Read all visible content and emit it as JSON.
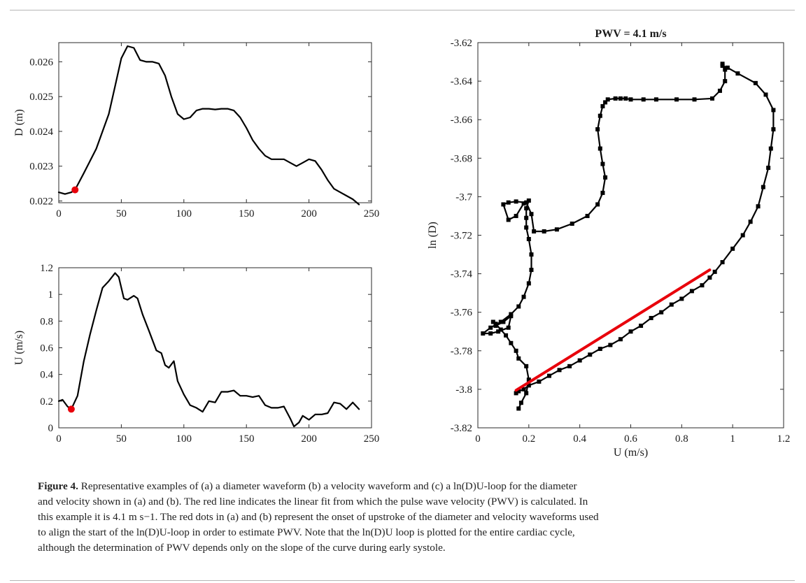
{
  "chart_data": [
    {
      "id": "a",
      "type": "line",
      "title": "",
      "xlabel": "",
      "ylabel": "D (m)",
      "xlim": [
        0,
        250
      ],
      "ylim": [
        0.02195,
        0.02655
      ],
      "xticks": [
        0,
        50,
        100,
        150,
        200,
        250
      ],
      "xtick_labels": [
        "0",
        "50",
        "100",
        "150",
        "200",
        "250"
      ],
      "yticks": [
        0.022,
        0.023,
        0.024,
        0.025,
        0.026
      ],
      "ytick_labels": [
        "0.022",
        "0.023",
        "0.024",
        "0.025",
        "0.026"
      ],
      "grid": false,
      "series": [
        {
          "color": "#000000",
          "x": [
            0,
            5,
            10,
            13,
            20,
            30,
            40,
            45,
            50,
            55,
            60,
            65,
            70,
            75,
            80,
            85,
            90,
            95,
            100,
            105,
            110,
            115,
            120,
            125,
            130,
            135,
            140,
            145,
            150,
            155,
            160,
            165,
            170,
            175,
            180,
            185,
            190,
            195,
            200,
            205,
            210,
            215,
            220,
            225,
            230,
            235,
            240
          ],
          "y": [
            0.02225,
            0.0222,
            0.02225,
            0.02232,
            0.0228,
            0.0235,
            0.0245,
            0.0253,
            0.0261,
            0.02645,
            0.0264,
            0.02605,
            0.026,
            0.026,
            0.02595,
            0.0256,
            0.025,
            0.0245,
            0.02435,
            0.0244,
            0.0246,
            0.02465,
            0.02465,
            0.02463,
            0.02465,
            0.02465,
            0.0246,
            0.0244,
            0.0241,
            0.02375,
            0.0235,
            0.0233,
            0.0232,
            0.0232,
            0.0232,
            0.0231,
            0.023,
            0.0231,
            0.0232,
            0.02315,
            0.0229,
            0.0226,
            0.02235,
            0.02225,
            0.02215,
            0.02205,
            0.0219
          ]
        }
      ],
      "markers": [
        {
          "x": 13,
          "y": 0.02232,
          "color": "#e8000b"
        }
      ]
    },
    {
      "id": "b",
      "type": "line",
      "title": "",
      "xlabel": "",
      "ylabel": "U (m/s)",
      "xlim": [
        0,
        250
      ],
      "ylim": [
        0,
        1.2
      ],
      "xticks": [
        0,
        50,
        100,
        150,
        200,
        250
      ],
      "xtick_labels": [
        "0",
        "50",
        "100",
        "150",
        "200",
        "250"
      ],
      "yticks": [
        0,
        0.2,
        0.4,
        0.6,
        0.8,
        1,
        1.2
      ],
      "ytick_labels": [
        "0",
        "0.2",
        "0.4",
        "0.6",
        "0.8",
        "1",
        "1.2"
      ],
      "grid": false,
      "series": [
        {
          "color": "#000000",
          "x": [
            0,
            3,
            7,
            10,
            15,
            20,
            25,
            30,
            35,
            40,
            45,
            48,
            52,
            55,
            60,
            63,
            67,
            72,
            78,
            82,
            85,
            88,
            92,
            95,
            100,
            105,
            110,
            115,
            120,
            125,
            130,
            135,
            140,
            145,
            150,
            155,
            160,
            165,
            170,
            175,
            180,
            185,
            188,
            192,
            195,
            200,
            205,
            210,
            215,
            220,
            225,
            230,
            235,
            240
          ],
          "y": [
            0.2,
            0.21,
            0.16,
            0.14,
            0.24,
            0.5,
            0.7,
            0.88,
            1.05,
            1.1,
            1.16,
            1.13,
            0.97,
            0.96,
            0.99,
            0.97,
            0.85,
            0.73,
            0.58,
            0.56,
            0.47,
            0.45,
            0.5,
            0.35,
            0.25,
            0.17,
            0.15,
            0.12,
            0.2,
            0.19,
            0.27,
            0.27,
            0.28,
            0.24,
            0.24,
            0.23,
            0.24,
            0.17,
            0.15,
            0.15,
            0.16,
            0.07,
            0.01,
            0.04,
            0.09,
            0.06,
            0.1,
            0.1,
            0.11,
            0.19,
            0.18,
            0.14,
            0.19,
            0.14
          ]
        }
      ],
      "markers": [
        {
          "x": 10,
          "y": 0.14,
          "color": "#e8000b"
        }
      ]
    },
    {
      "id": "c",
      "type": "line",
      "title": "PWV = 4.1 m/s",
      "xlabel": "U (m/s)",
      "ylabel": "ln (D)",
      "xlim": [
        0,
        1.2
      ],
      "ylim": [
        -3.82,
        -3.62
      ],
      "xticks": [
        0,
        0.2,
        0.4,
        0.6,
        0.8,
        1,
        1.2
      ],
      "xtick_labels": [
        "0",
        "0.2",
        "0.4",
        "0.6",
        "0.8",
        "1",
        "1.2"
      ],
      "yticks": [
        -3.82,
        -3.8,
        -3.78,
        -3.76,
        -3.74,
        -3.72,
        -3.7,
        -3.68,
        -3.66,
        -3.64,
        -3.62
      ],
      "ytick_labels": [
        "-3.82",
        "-3.8",
        "-3.78",
        "-3.76",
        "-3.74",
        "-3.72",
        "-3.7",
        "-3.68",
        "-3.66",
        "-3.64",
        "-3.62"
      ],
      "grid": false,
      "series": [
        {
          "color": "#000000",
          "marker": "square",
          "x": [
            0.16,
            0.17,
            0.19,
            0.2,
            0.19,
            0.16,
            0.15,
            0.13,
            0.11,
            0.09,
            0.07,
            0.06,
            0.07,
            0.1,
            0.13,
            0.12,
            0.08,
            0.05,
            0.02,
            0.05,
            0.09,
            0.13,
            0.16,
            0.18,
            0.2,
            0.21,
            0.21,
            0.2,
            0.19,
            0.19,
            0.19,
            0.2,
            0.18,
            0.15,
            0.12,
            0.1,
            0.12,
            0.15,
            0.19,
            0.21,
            0.22,
            0.26,
            0.31,
            0.37,
            0.43,
            0.47,
            0.49,
            0.5,
            0.49,
            0.48,
            0.47,
            0.48,
            0.49,
            0.5,
            0.51,
            0.54,
            0.56,
            0.58,
            0.6,
            0.65,
            0.7,
            0.78,
            0.85,
            0.92,
            0.95,
            0.97,
            0.97,
            0.96,
            0.96,
            0.98,
            1.02,
            1.09,
            1.13,
            1.16,
            1.16,
            1.15,
            1.14,
            1.12,
            1.1,
            1.07,
            1.04,
            1.0,
            0.96,
            0.93,
            0.91,
            0.88,
            0.84,
            0.8,
            0.76,
            0.72,
            0.68,
            0.64,
            0.6,
            0.56,
            0.52,
            0.48,
            0.44,
            0.4,
            0.36,
            0.32,
            0.28,
            0.24,
            0.2,
            0.18,
            0.16,
            0.15
          ],
          "y": [
            -3.81,
            -3.807,
            -3.802,
            -3.795,
            -3.788,
            -3.784,
            -3.78,
            -3.776,
            -3.772,
            -3.769,
            -3.766,
            -3.765,
            -3.767,
            -3.765,
            -3.762,
            -3.768,
            -3.77,
            -3.771,
            -3.771,
            -3.768,
            -3.765,
            -3.761,
            -3.757,
            -3.752,
            -3.745,
            -3.738,
            -3.73,
            -3.722,
            -3.716,
            -3.711,
            -3.706,
            -3.702,
            -3.7035,
            -3.71,
            -3.712,
            -3.704,
            -3.703,
            -3.7025,
            -3.703,
            -3.709,
            -3.718,
            -3.718,
            -3.717,
            -3.714,
            -3.71,
            -3.704,
            -3.698,
            -3.69,
            -3.683,
            -3.675,
            -3.665,
            -3.658,
            -3.653,
            -3.651,
            -3.6495,
            -3.649,
            -3.649,
            -3.649,
            -3.6495,
            -3.6495,
            -3.6495,
            -3.6495,
            -3.6495,
            -3.649,
            -3.645,
            -3.64,
            -3.634,
            -3.631,
            -3.632,
            -3.633,
            -3.636,
            -3.641,
            -3.647,
            -3.655,
            -3.665,
            -3.675,
            -3.685,
            -3.695,
            -3.705,
            -3.713,
            -3.72,
            -3.727,
            -3.734,
            -3.739,
            -3.742,
            -3.746,
            -3.749,
            -3.753,
            -3.756,
            -3.76,
            -3.763,
            -3.767,
            -3.77,
            -3.774,
            -3.777,
            -3.779,
            -3.782,
            -3.785,
            -3.788,
            -3.79,
            -3.793,
            -3.796,
            -3.798,
            -3.8,
            -3.801,
            -3.802
          ]
        },
        {
          "name": "",
          "color": "#e8000b",
          "x": [
            0.15,
            0.91
          ],
          "y": [
            -3.8005,
            -3.738
          ]
        }
      ]
    }
  ],
  "caption": {
    "label": "Figure 4.",
    "line1": "Representative examples of (a) a diameter waveform (b) a velocity waveform and (c) a ln(D)U-loop for the diameter",
    "line2": "and velocity shown in (a) and (b). The red line indicates the linear fit from which the pulse wave velocity (PWV) is calculated. In",
    "line3": "this example it is 4.1 m s−1. The red dots in (a) and (b) represent the onset of upstroke of the diameter and velocity waveforms used",
    "line4": "to align the start of the ln(D)U-loop in order to estimate PWV. Note that the ln(D)U loop is plotted for the entire cardiac cycle,",
    "line5": "although the determination of PWV depends only on the slope of the curve during early systole."
  }
}
